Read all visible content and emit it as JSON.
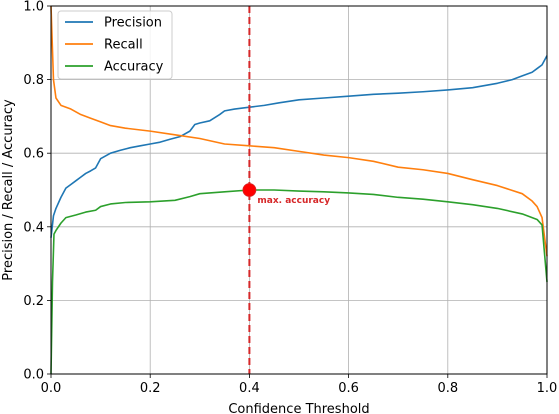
{
  "chart_data": {
    "type": "line",
    "title": "",
    "xlabel": "Confidence Threshold",
    "ylabel": "Precision / Recall / Accuracy",
    "xlim": [
      0.0,
      1.0
    ],
    "ylim": [
      0.0,
      1.0
    ],
    "xticks": [
      "0.0",
      "0.2",
      "0.4",
      "0.6",
      "0.8",
      "1.0"
    ],
    "yticks": [
      "0.0",
      "0.2",
      "0.4",
      "0.6",
      "0.8",
      "1.0"
    ],
    "grid": true,
    "legend_position": "top-left",
    "series": [
      {
        "name": "Precision",
        "color": "#1f77b4",
        "points": [
          [
            0.0,
            0.37
          ],
          [
            0.005,
            0.43
          ],
          [
            0.01,
            0.45
          ],
          [
            0.02,
            0.48
          ],
          [
            0.03,
            0.505
          ],
          [
            0.04,
            0.515
          ],
          [
            0.05,
            0.525
          ],
          [
            0.06,
            0.535
          ],
          [
            0.07,
            0.545
          ],
          [
            0.08,
            0.552
          ],
          [
            0.09,
            0.56
          ],
          [
            0.1,
            0.585
          ],
          [
            0.12,
            0.6
          ],
          [
            0.14,
            0.608
          ],
          [
            0.16,
            0.615
          ],
          [
            0.18,
            0.62
          ],
          [
            0.2,
            0.625
          ],
          [
            0.22,
            0.63
          ],
          [
            0.24,
            0.638
          ],
          [
            0.26,
            0.645
          ],
          [
            0.28,
            0.66
          ],
          [
            0.29,
            0.678
          ],
          [
            0.3,
            0.682
          ],
          [
            0.32,
            0.688
          ],
          [
            0.34,
            0.705
          ],
          [
            0.35,
            0.715
          ],
          [
            0.37,
            0.72
          ],
          [
            0.4,
            0.725
          ],
          [
            0.43,
            0.73
          ],
          [
            0.46,
            0.737
          ],
          [
            0.5,
            0.745
          ],
          [
            0.55,
            0.75
          ],
          [
            0.6,
            0.755
          ],
          [
            0.65,
            0.76
          ],
          [
            0.7,
            0.763
          ],
          [
            0.75,
            0.767
          ],
          [
            0.8,
            0.772
          ],
          [
            0.85,
            0.778
          ],
          [
            0.9,
            0.79
          ],
          [
            0.93,
            0.8
          ],
          [
            0.95,
            0.81
          ],
          [
            0.97,
            0.82
          ],
          [
            0.98,
            0.83
          ],
          [
            0.99,
            0.84
          ],
          [
            1.0,
            0.865
          ]
        ]
      },
      {
        "name": "Recall",
        "color": "#ff7f0e",
        "points": [
          [
            0.0,
            1.0
          ],
          [
            0.005,
            0.8
          ],
          [
            0.01,
            0.75
          ],
          [
            0.02,
            0.73
          ],
          [
            0.04,
            0.72
          ],
          [
            0.06,
            0.705
          ],
          [
            0.08,
            0.695
          ],
          [
            0.1,
            0.685
          ],
          [
            0.12,
            0.675
          ],
          [
            0.15,
            0.668
          ],
          [
            0.2,
            0.66
          ],
          [
            0.25,
            0.65
          ],
          [
            0.3,
            0.64
          ],
          [
            0.35,
            0.625
          ],
          [
            0.4,
            0.62
          ],
          [
            0.45,
            0.615
          ],
          [
            0.5,
            0.605
          ],
          [
            0.55,
            0.595
          ],
          [
            0.6,
            0.588
          ],
          [
            0.65,
            0.578
          ],
          [
            0.7,
            0.562
          ],
          [
            0.75,
            0.555
          ],
          [
            0.8,
            0.545
          ],
          [
            0.85,
            0.528
          ],
          [
            0.9,
            0.512
          ],
          [
            0.95,
            0.49
          ],
          [
            0.97,
            0.47
          ],
          [
            0.98,
            0.455
          ],
          [
            0.99,
            0.425
          ],
          [
            1.0,
            0.32
          ]
        ]
      },
      {
        "name": "Accuracy",
        "color": "#2ca02c",
        "points": [
          [
            0.0,
            0.0
          ],
          [
            0.003,
            0.25
          ],
          [
            0.006,
            0.38
          ],
          [
            0.01,
            0.39
          ],
          [
            0.02,
            0.41
          ],
          [
            0.03,
            0.425
          ],
          [
            0.05,
            0.432
          ],
          [
            0.07,
            0.44
          ],
          [
            0.09,
            0.445
          ],
          [
            0.1,
            0.455
          ],
          [
            0.12,
            0.462
          ],
          [
            0.15,
            0.466
          ],
          [
            0.2,
            0.468
          ],
          [
            0.25,
            0.472
          ],
          [
            0.28,
            0.482
          ],
          [
            0.3,
            0.49
          ],
          [
            0.35,
            0.495
          ],
          [
            0.4,
            0.5
          ],
          [
            0.45,
            0.5
          ],
          [
            0.5,
            0.497
          ],
          [
            0.55,
            0.495
          ],
          [
            0.6,
            0.492
          ],
          [
            0.65,
            0.488
          ],
          [
            0.7,
            0.48
          ],
          [
            0.75,
            0.475
          ],
          [
            0.8,
            0.468
          ],
          [
            0.85,
            0.46
          ],
          [
            0.9,
            0.45
          ],
          [
            0.95,
            0.435
          ],
          [
            0.98,
            0.42
          ],
          [
            0.99,
            0.405
          ],
          [
            1.0,
            0.25
          ]
        ]
      }
    ],
    "vline": {
      "x": 0.4,
      "color": "#d62728",
      "style": "dashed"
    },
    "marker": {
      "x": 0.4,
      "y": 0.5,
      "color": "#ff0000",
      "label": "max. accuracy",
      "label_color": "#d62728"
    }
  }
}
